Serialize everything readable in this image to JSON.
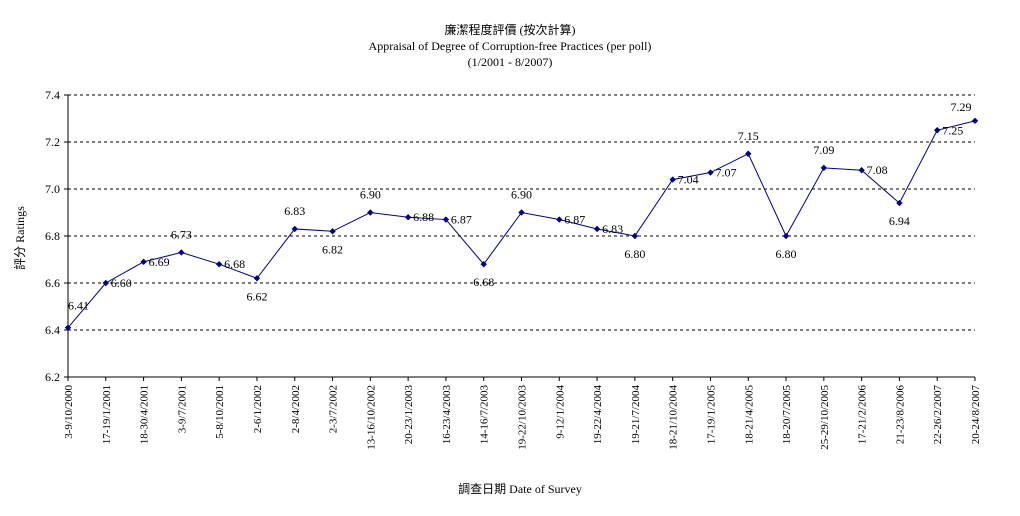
{
  "chart_data": {
    "type": "line",
    "title": "廉潔程度評價 (按次計算)",
    "subtitle": "Appraisal of Degree of Corruption-free Practices (per poll)",
    "period": "(1/2001 - 8/2007)",
    "xlabel": "調查日期 Date of Survey",
    "ylabel": "評分 Ratings",
    "ylim": [
      6.2,
      7.4
    ],
    "yticks": [
      "6.2",
      "6.4",
      "6.6",
      "6.8",
      "7.0",
      "7.2",
      "7.4"
    ],
    "grid": true,
    "legend": "none",
    "line_color": "#000080",
    "x_tick_labels": [
      "3-9/10/2000",
      "17-19/1/2001",
      "18-30/4/2001",
      "3-9/7/2001",
      "5-8/10/2001",
      "2-6/1/2002",
      "2-8/4/2002",
      "2-3/7/2002",
      "13-16/10/2002",
      "20-23/1/2003",
      "16-23/4/2003",
      "14-16/7/2003",
      "19-22/10/2003",
      "9-12/1/2004",
      "19-22/4/2004",
      "19-21/7/2004",
      "18-21/10/2004",
      "17-19/1/2005",
      "18-21/4/2005",
      "18-20/7/2005",
      "25-29/10/2005",
      "17-21/2/2006",
      "21-23/8/2006",
      "22-26/2/2007",
      "20-24/8/2007"
    ],
    "points": [
      {
        "value": 6.41,
        "label": "6.41"
      },
      {
        "value": 6.6,
        "label": "6.60"
      },
      {
        "value": 6.69,
        "label": "6.69"
      },
      {
        "value": 6.73,
        "label": "6.73"
      },
      {
        "value": 6.68,
        "label": "6.68"
      },
      {
        "value": 6.62,
        "label": "6.62"
      },
      {
        "value": 6.83,
        "label": "6.83"
      },
      {
        "value": 6.82,
        "label": "6.82"
      },
      {
        "value": 6.9,
        "label": "6.90"
      },
      {
        "value": 6.88,
        "label": "6.88"
      },
      {
        "value": 6.87,
        "label": "6.87"
      },
      {
        "value": 6.68,
        "label": "6.68"
      },
      {
        "value": 6.9,
        "label": "6.90"
      },
      {
        "value": 6.87,
        "label": "6.87"
      },
      {
        "value": 6.83,
        "label": "6.83"
      },
      {
        "value": 6.8,
        "label": "6.80"
      },
      {
        "value": 7.04,
        "label": "7.04"
      },
      {
        "value": 7.07,
        "label": "7.07"
      },
      {
        "value": 7.15,
        "label": "7.15"
      },
      {
        "value": 6.8,
        "label": "6.80"
      },
      {
        "value": 7.09,
        "label": "7.09"
      },
      {
        "value": 7.08,
        "label": "7.08"
      },
      {
        "value": 6.94,
        "label": "6.94"
      },
      {
        "value": 7.25,
        "label": "7.25"
      },
      {
        "value": 7.29,
        "label": "7.29"
      }
    ]
  }
}
